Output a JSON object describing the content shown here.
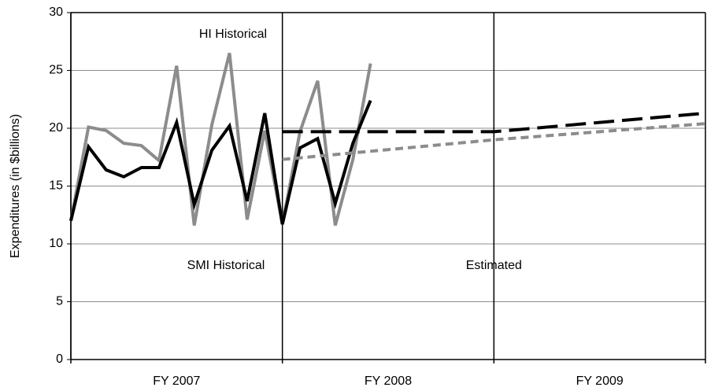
{
  "chart_data": {
    "type": "line",
    "y_label": "Expenditures (in $billions)",
    "ylim": [
      0,
      30
    ],
    "yticks": [
      0,
      5,
      10,
      15,
      20,
      25,
      30
    ],
    "grid": true,
    "xlim": [
      0,
      36
    ],
    "xticks": [
      0,
      12,
      24,
      36
    ],
    "x_labels": [
      {
        "value": 6,
        "label": "FY 2007"
      },
      {
        "value": 18,
        "label": "FY 2008"
      },
      {
        "value": 30,
        "label": "FY 2009"
      }
    ],
    "annotations": [
      {
        "text": "HI Historical",
        "x": 9.2,
        "y": 28.1
      },
      {
        "text": "SMI Historical",
        "x": 8.8,
        "y": 8.1
      },
      {
        "text": "Estimated",
        "x": 24,
        "y": 8.1
      }
    ],
    "series": [
      {
        "color": "#8c8c8c",
        "dash": false,
        "x": [
          0,
          1,
          2,
          3,
          4,
          5,
          6,
          7,
          8,
          9,
          10,
          11,
          12,
          13,
          14,
          15,
          16,
          17
        ],
        "values": [
          12.0,
          20.1,
          19.8,
          18.7,
          18.5,
          17.2,
          25.4,
          11.6,
          20.3,
          26.5,
          12.1,
          19.8,
          11.7,
          19.7,
          24.1,
          11.6,
          17.3,
          25.6
        ]
      },
      {
        "color": "#000000",
        "dash": false,
        "x": [
          0,
          1,
          2,
          3,
          4,
          5,
          6,
          7,
          8,
          9,
          10,
          11,
          12,
          13,
          14,
          15,
          16,
          17
        ],
        "values": [
          12.0,
          18.4,
          16.4,
          15.8,
          16.6,
          16.6,
          20.5,
          13.4,
          18.1,
          20.2,
          13.7,
          21.3,
          11.7,
          18.3,
          19.1,
          13.5,
          18.7,
          22.4
        ]
      },
      {
        "color": "#000000",
        "dash": true,
        "x": [
          12,
          24,
          36
        ],
        "values": [
          19.7,
          19.7,
          21.3
        ]
      },
      {
        "color": "#8c8c8c",
        "dash": true,
        "x": [
          12,
          24,
          36
        ],
        "values": [
          17.3,
          19.0,
          20.4
        ]
      }
    ]
  }
}
